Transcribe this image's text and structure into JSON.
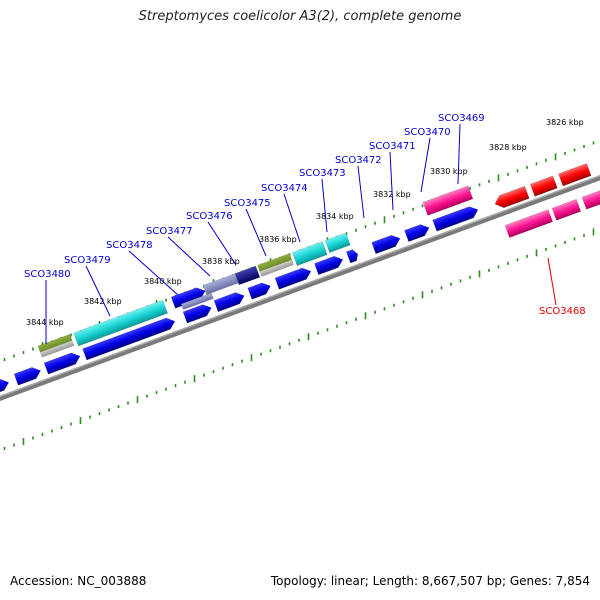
{
  "title": "Streptomyces coelicolor A3(2), complete genome",
  "footer": {
    "accession": "Accession: NC_003888",
    "summary": "Topology: linear; Length: 8,667,507 bp; Genes: 7,854"
  },
  "colors": {
    "backbone": "#777777",
    "ticks": "#2e8b22",
    "forward_gene": "#0000e6",
    "cds_cyan": "#19d4d4",
    "cds_olive": "#6e8c2a",
    "rna_pink": "#ff1493",
    "rna_red": "#ff0000",
    "label_blue": "#0000cc",
    "label_red": "#e00000"
  },
  "kbp_labels": [
    "3826 kbp",
    "3828 kbp",
    "3830 kbp",
    "3832 kbp",
    "3834 kbp",
    "3836 kbp",
    "3838 kbp",
    "3840 kbp",
    "3842 kbp",
    "3844 kbp"
  ],
  "gene_labels": [
    {
      "id": "SCO3469",
      "color": "label_blue"
    },
    {
      "id": "SCO3470",
      "color": "label_blue"
    },
    {
      "id": "SCO3471",
      "color": "label_blue"
    },
    {
      "id": "SCO3472",
      "color": "label_blue"
    },
    {
      "id": "SCO3473",
      "color": "label_blue"
    },
    {
      "id": "SCO3474",
      "color": "label_blue"
    },
    {
      "id": "SCO3475",
      "color": "label_blue"
    },
    {
      "id": "SCO3476",
      "color": "label_blue"
    },
    {
      "id": "SCO3477",
      "color": "label_blue"
    },
    {
      "id": "SCO3478",
      "color": "label_blue"
    },
    {
      "id": "SCO3479",
      "color": "label_blue"
    },
    {
      "id": "SCO3480",
      "color": "label_blue"
    },
    {
      "id": "SCO3468",
      "color": "label_red"
    }
  ]
}
